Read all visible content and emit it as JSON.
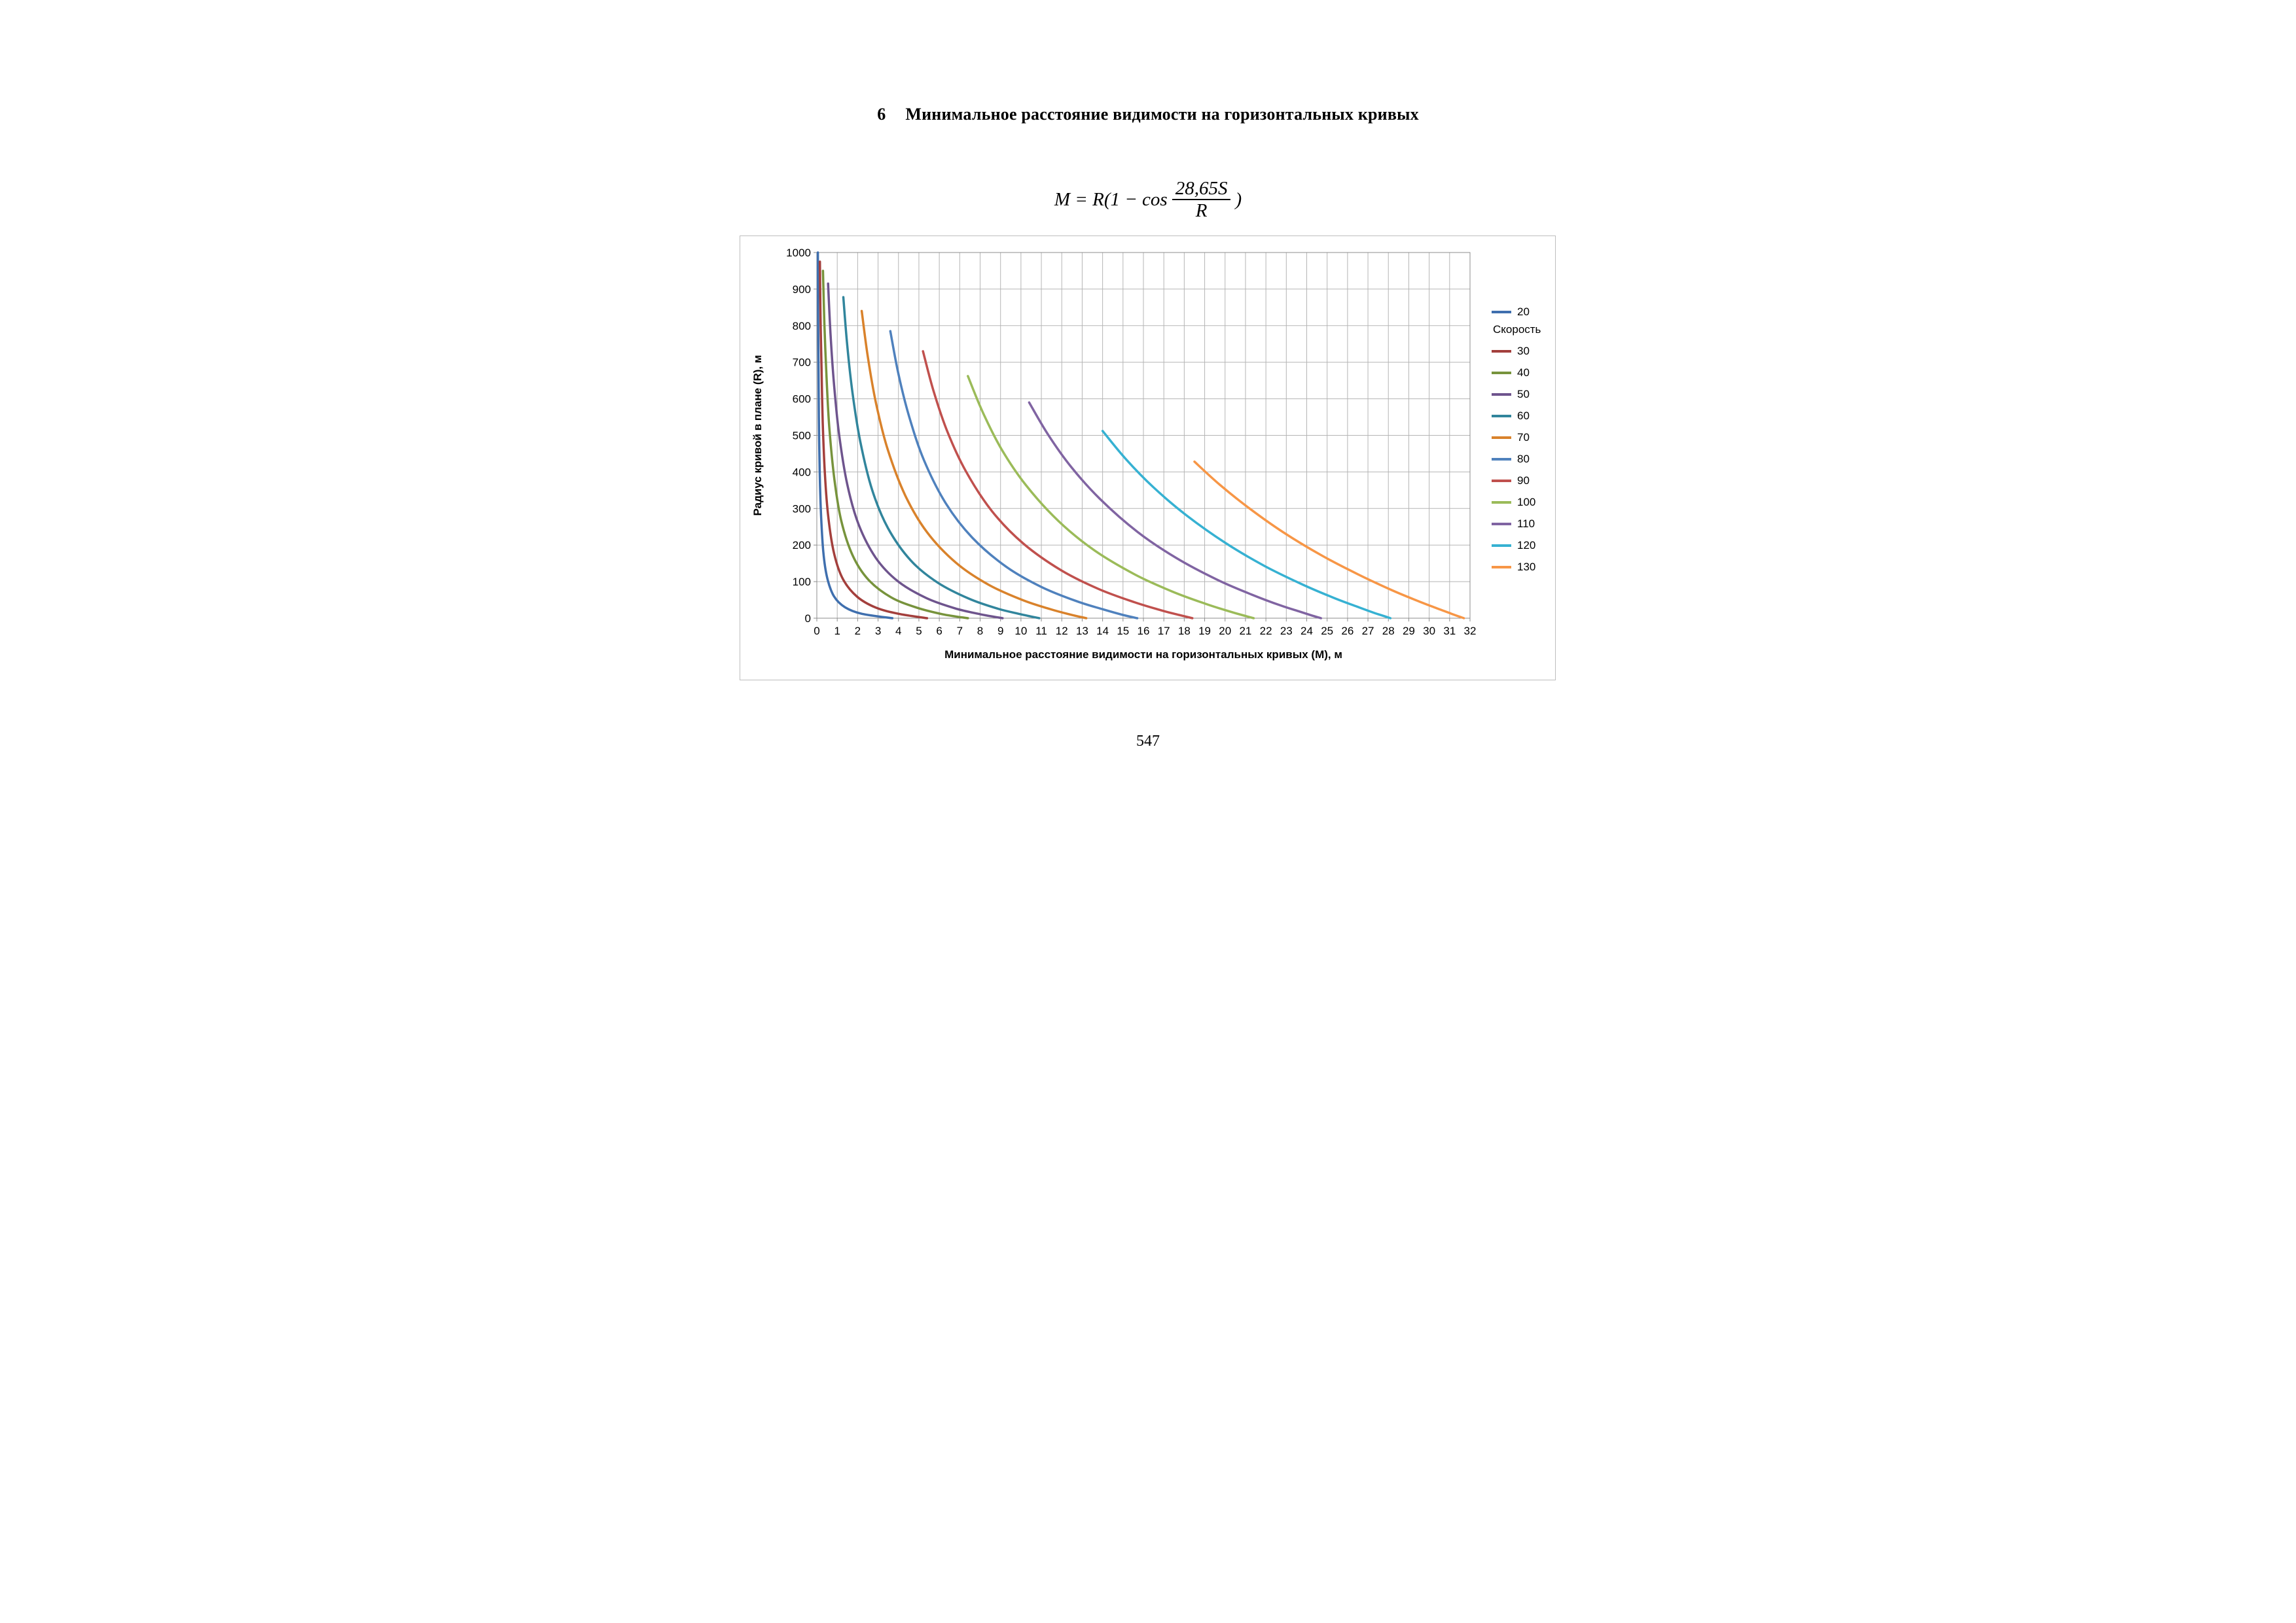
{
  "page": {
    "title_number": "6",
    "title_text": "Минимальное расстояние видимости на горизонтальных кривых",
    "page_number": "547",
    "formula": {
      "lhs": "M = R(1 − cos",
      "numerator": "28,65S",
      "denominator": "R",
      "rhs": ")"
    }
  },
  "chart_data": {
    "type": "line",
    "title": "",
    "grid": true,
    "legend": {
      "title": "Скорость",
      "position": "right"
    },
    "x_axis": {
      "label": "Минимальное расстояние видимости на горизонтальных кривых (М), м",
      "min": 0,
      "max": 32,
      "tick_step": 1,
      "ticks": [
        0,
        1,
        2,
        3,
        4,
        5,
        6,
        7,
        8,
        9,
        10,
        11,
        12,
        13,
        14,
        15,
        16,
        17,
        18,
        19,
        20,
        21,
        22,
        23,
        24,
        25,
        26,
        27,
        28,
        29,
        30,
        31,
        32
      ]
    },
    "y_axis": {
      "label": "Радиус кривой в плане (R), м",
      "min": 0,
      "max": 1000,
      "tick_step": 100,
      "ticks": [
        0,
        100,
        200,
        300,
        400,
        500,
        600,
        700,
        800,
        900,
        1000
      ]
    },
    "series": [
      {
        "name": "20",
        "color": "#3f6fae",
        "points": [
          [
            0.05,
            1000
          ],
          [
            0.06,
            850
          ],
          [
            0.08,
            700
          ],
          [
            0.1,
            550
          ],
          [
            0.14,
            400
          ],
          [
            0.21,
            280
          ],
          [
            0.32,
            180
          ],
          [
            0.51,
            110
          ],
          [
            0.84,
            60
          ],
          [
            1.38,
            30
          ],
          [
            2.21,
            12
          ],
          [
            3.7,
            0
          ]
        ]
      },
      {
        "name": "30",
        "color": "#a33f3c",
        "points": [
          [
            0.15,
            975
          ],
          [
            0.18,
            829
          ],
          [
            0.23,
            683
          ],
          [
            0.29,
            536
          ],
          [
            0.4,
            390
          ],
          [
            0.57,
            273
          ],
          [
            0.85,
            176
          ],
          [
            1.28,
            107
          ],
          [
            1.97,
            59
          ],
          [
            2.89,
            29
          ],
          [
            4.01,
            12
          ],
          [
            5.4,
            0
          ]
        ]
      },
      {
        "name": "40",
        "color": "#77933c",
        "points": [
          [
            0.3,
            950
          ],
          [
            0.37,
            808
          ],
          [
            0.47,
            665
          ],
          [
            0.61,
            523
          ],
          [
            0.86,
            380
          ],
          [
            1.2,
            266
          ],
          [
            1.76,
            171
          ],
          [
            2.53,
            105
          ],
          [
            3.64,
            57
          ],
          [
            4.89,
            29
          ],
          [
            6.15,
            11
          ],
          [
            7.4,
            0
          ]
        ]
      },
      {
        "name": "50",
        "color": "#6e548d",
        "points": [
          [
            0.55,
            915
          ],
          [
            0.67,
            778
          ],
          [
            0.84,
            641
          ],
          [
            1.09,
            503
          ],
          [
            1.49,
            366
          ],
          [
            2.05,
            256
          ],
          [
            2.89,
            165
          ],
          [
            3.97,
            101
          ],
          [
            5.37,
            55
          ],
          [
            6.77,
            27
          ],
          [
            8.0,
            11
          ],
          [
            9.1,
            0
          ]
        ]
      },
      {
        "name": "60",
        "color": "#31859c",
        "points": [
          [
            1.3,
            878
          ],
          [
            1.49,
            746
          ],
          [
            1.75,
            615
          ],
          [
            2.13,
            483
          ],
          [
            2.71,
            351
          ],
          [
            3.49,
            246
          ],
          [
            4.6,
            158
          ],
          [
            5.93,
            97
          ],
          [
            7.47,
            53
          ],
          [
            8.87,
            26
          ],
          [
            9.98,
            11
          ],
          [
            10.9,
            0
          ]
        ]
      },
      {
        "name": "70",
        "color": "#d9822b",
        "points": [
          [
            2.2,
            840
          ],
          [
            2.5,
            714
          ],
          [
            2.9,
            588
          ],
          [
            3.47,
            462
          ],
          [
            4.33,
            336
          ],
          [
            5.4,
            235
          ],
          [
            6.83,
            151
          ],
          [
            8.4,
            92
          ],
          [
            10.06,
            50
          ],
          [
            11.42,
            25
          ],
          [
            12.42,
            10
          ],
          [
            13.2,
            0
          ]
        ]
      },
      {
        "name": "80",
        "color": "#4f81bd",
        "points": [
          [
            3.6,
            785
          ],
          [
            4.0,
            667
          ],
          [
            4.53,
            550
          ],
          [
            5.25,
            432
          ],
          [
            6.32,
            314
          ],
          [
            7.62,
            220
          ],
          [
            9.27,
            141
          ],
          [
            10.98,
            86
          ],
          [
            12.7,
            47
          ],
          [
            14.03,
            24
          ],
          [
            14.99,
            9
          ],
          [
            15.7,
            0
          ]
        ]
      },
      {
        "name": "90",
        "color": "#c0504d",
        "points": [
          [
            5.2,
            730
          ],
          [
            5.72,
            621
          ],
          [
            6.39,
            511
          ],
          [
            7.3,
            402
          ],
          [
            8.59,
            292
          ],
          [
            10.12,
            204
          ],
          [
            11.97,
            131
          ],
          [
            13.8,
            80
          ],
          [
            15.54,
            44
          ],
          [
            16.84,
            22
          ],
          [
            17.74,
            9
          ],
          [
            18.4,
            0
          ]
        ]
      },
      {
        "name": "100",
        "color": "#9bbb59",
        "points": [
          [
            7.4,
            662
          ],
          [
            8.13,
            563
          ],
          [
            9.04,
            463
          ],
          [
            10.24,
            364
          ],
          [
            11.85,
            265
          ],
          [
            13.61,
            185
          ],
          [
            15.6,
            119
          ],
          [
            17.41,
            73
          ],
          [
            19.01,
            40
          ],
          [
            20.13,
            20
          ],
          [
            20.87,
            8
          ],
          [
            21.4,
            0
          ]
        ]
      },
      {
        "name": "110",
        "color": "#8064a2",
        "points": [
          [
            10.4,
            590
          ],
          [
            11.33,
            502
          ],
          [
            12.47,
            413
          ],
          [
            13.89,
            325
          ],
          [
            15.71,
            236
          ],
          [
            17.6,
            165
          ],
          [
            19.58,
            106
          ],
          [
            21.29,
            65
          ],
          [
            22.71,
            35
          ],
          [
            23.66,
            18
          ],
          [
            24.27,
            7
          ],
          [
            24.7,
            0
          ]
        ]
      },
      {
        "name": "120",
        "color": "#36b1d2",
        "points": [
          [
            14.0,
            512
          ],
          [
            15.14,
            435
          ],
          [
            16.49,
            358
          ],
          [
            18.09,
            282
          ],
          [
            20.04,
            205
          ],
          [
            21.93,
            143
          ],
          [
            23.8,
            92
          ],
          [
            25.31,
            56
          ],
          [
            26.5,
            31
          ],
          [
            27.28,
            15
          ],
          [
            27.77,
            6
          ],
          [
            28.1,
            0
          ]
        ]
      },
      {
        "name": "130",
        "color": "#f79646",
        "points": [
          [
            18.5,
            428
          ],
          [
            19.76,
            364
          ],
          [
            21.2,
            300
          ],
          [
            22.85,
            235
          ],
          [
            24.75,
            171
          ],
          [
            26.51,
            120
          ],
          [
            28.16,
            77
          ],
          [
            29.45,
            47
          ],
          [
            30.43,
            26
          ],
          [
            31.05,
            13
          ],
          [
            31.44,
            5
          ],
          [
            31.7,
            0
          ]
        ]
      }
    ]
  }
}
